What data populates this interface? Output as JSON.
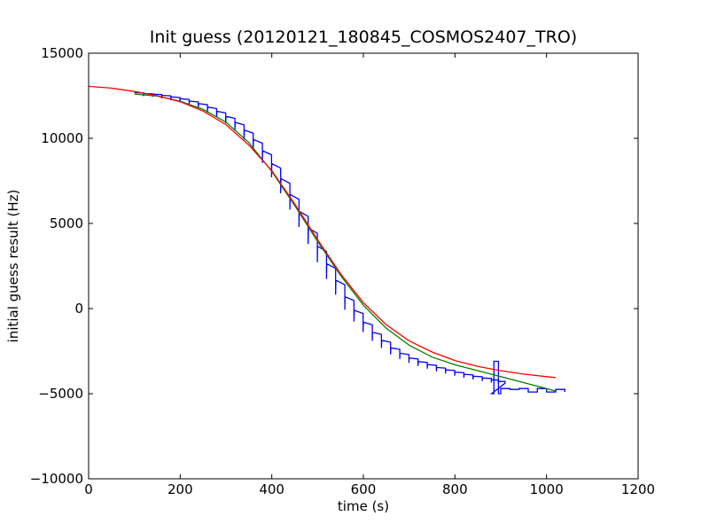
{
  "chart_data": {
    "type": "line",
    "title": "Init guess (20120121_180845_COSMOS2407_TRO)",
    "xlabel": "time (s)",
    "ylabel": "initial guess result (Hz)",
    "xlim": [
      0,
      1200
    ],
    "ylim": [
      -10000,
      15000
    ],
    "xticks": [
      0,
      200,
      400,
      600,
      800,
      1000,
      1200
    ],
    "yticks": [
      -10000,
      -5000,
      0,
      5000,
      10000,
      15000
    ],
    "xtick_labels": [
      "0",
      "200",
      "400",
      "600",
      "800",
      "1000",
      "1200"
    ],
    "ytick_labels": [
      "−10000",
      "−5000",
      "0",
      "5000",
      "10000",
      "15000"
    ],
    "grid": false,
    "legend": "none",
    "series": [
      {
        "color": "#0000ff",
        "style": "stepped-sawtooth",
        "x": [
          100,
          120,
          140,
          160,
          180,
          200,
          220,
          240,
          260,
          280,
          300,
          320,
          340,
          360,
          380,
          400,
          420,
          440,
          460,
          480,
          500,
          520,
          540,
          560,
          580,
          600,
          620,
          640,
          660,
          680,
          700,
          720,
          740,
          760,
          780,
          800,
          820,
          840,
          860,
          880,
          895
        ],
        "y": [
          12600,
          12550,
          12500,
          12420,
          12320,
          12200,
          12050,
          11880,
          11650,
          11380,
          11050,
          10650,
          10150,
          9550,
          8850,
          8050,
          7150,
          6200,
          5200,
          4200,
          3150,
          2150,
          1200,
          300,
          -450,
          -1100,
          -1650,
          -2100,
          -2500,
          -2800,
          -3050,
          -3250,
          -3420,
          -3580,
          -3720,
          -3850,
          -3970,
          -4080,
          -4180,
          -4270,
          -4340
        ],
        "tail_x": [
          880,
          885,
          890,
          895,
          900,
          920,
          940,
          960,
          980,
          1000,
          1020,
          1040
        ],
        "tail_y": [
          -5000,
          -3100,
          -3100,
          -5000,
          -4700,
          -4750,
          -4700,
          -4900,
          -4700,
          -4900,
          -4750,
          -4900
        ]
      },
      {
        "color": "#008000",
        "style": "line",
        "x": [
          100,
          150,
          200,
          250,
          300,
          350,
          400,
          450,
          500,
          550,
          600,
          650,
          700,
          750,
          800,
          850,
          900,
          950,
          1000,
          1020
        ],
        "y": [
          12600,
          12480,
          12180,
          11700,
          10950,
          9750,
          8050,
          6050,
          3950,
          1950,
          200,
          -1150,
          -2150,
          -2850,
          -3300,
          -3650,
          -4000,
          -4350,
          -4700,
          -4850
        ]
      },
      {
        "color": "#ff0000",
        "style": "line",
        "x": [
          0,
          50,
          100,
          150,
          200,
          250,
          300,
          350,
          400,
          450,
          500,
          550,
          600,
          650,
          700,
          750,
          800,
          850,
          900,
          950,
          1000,
          1020
        ],
        "y": [
          13050,
          12950,
          12750,
          12500,
          12150,
          11600,
          10800,
          9600,
          8100,
          6150,
          4050,
          2050,
          350,
          -950,
          -1900,
          -2550,
          -3050,
          -3400,
          -3650,
          -3850,
          -4000,
          -4050
        ]
      }
    ]
  }
}
